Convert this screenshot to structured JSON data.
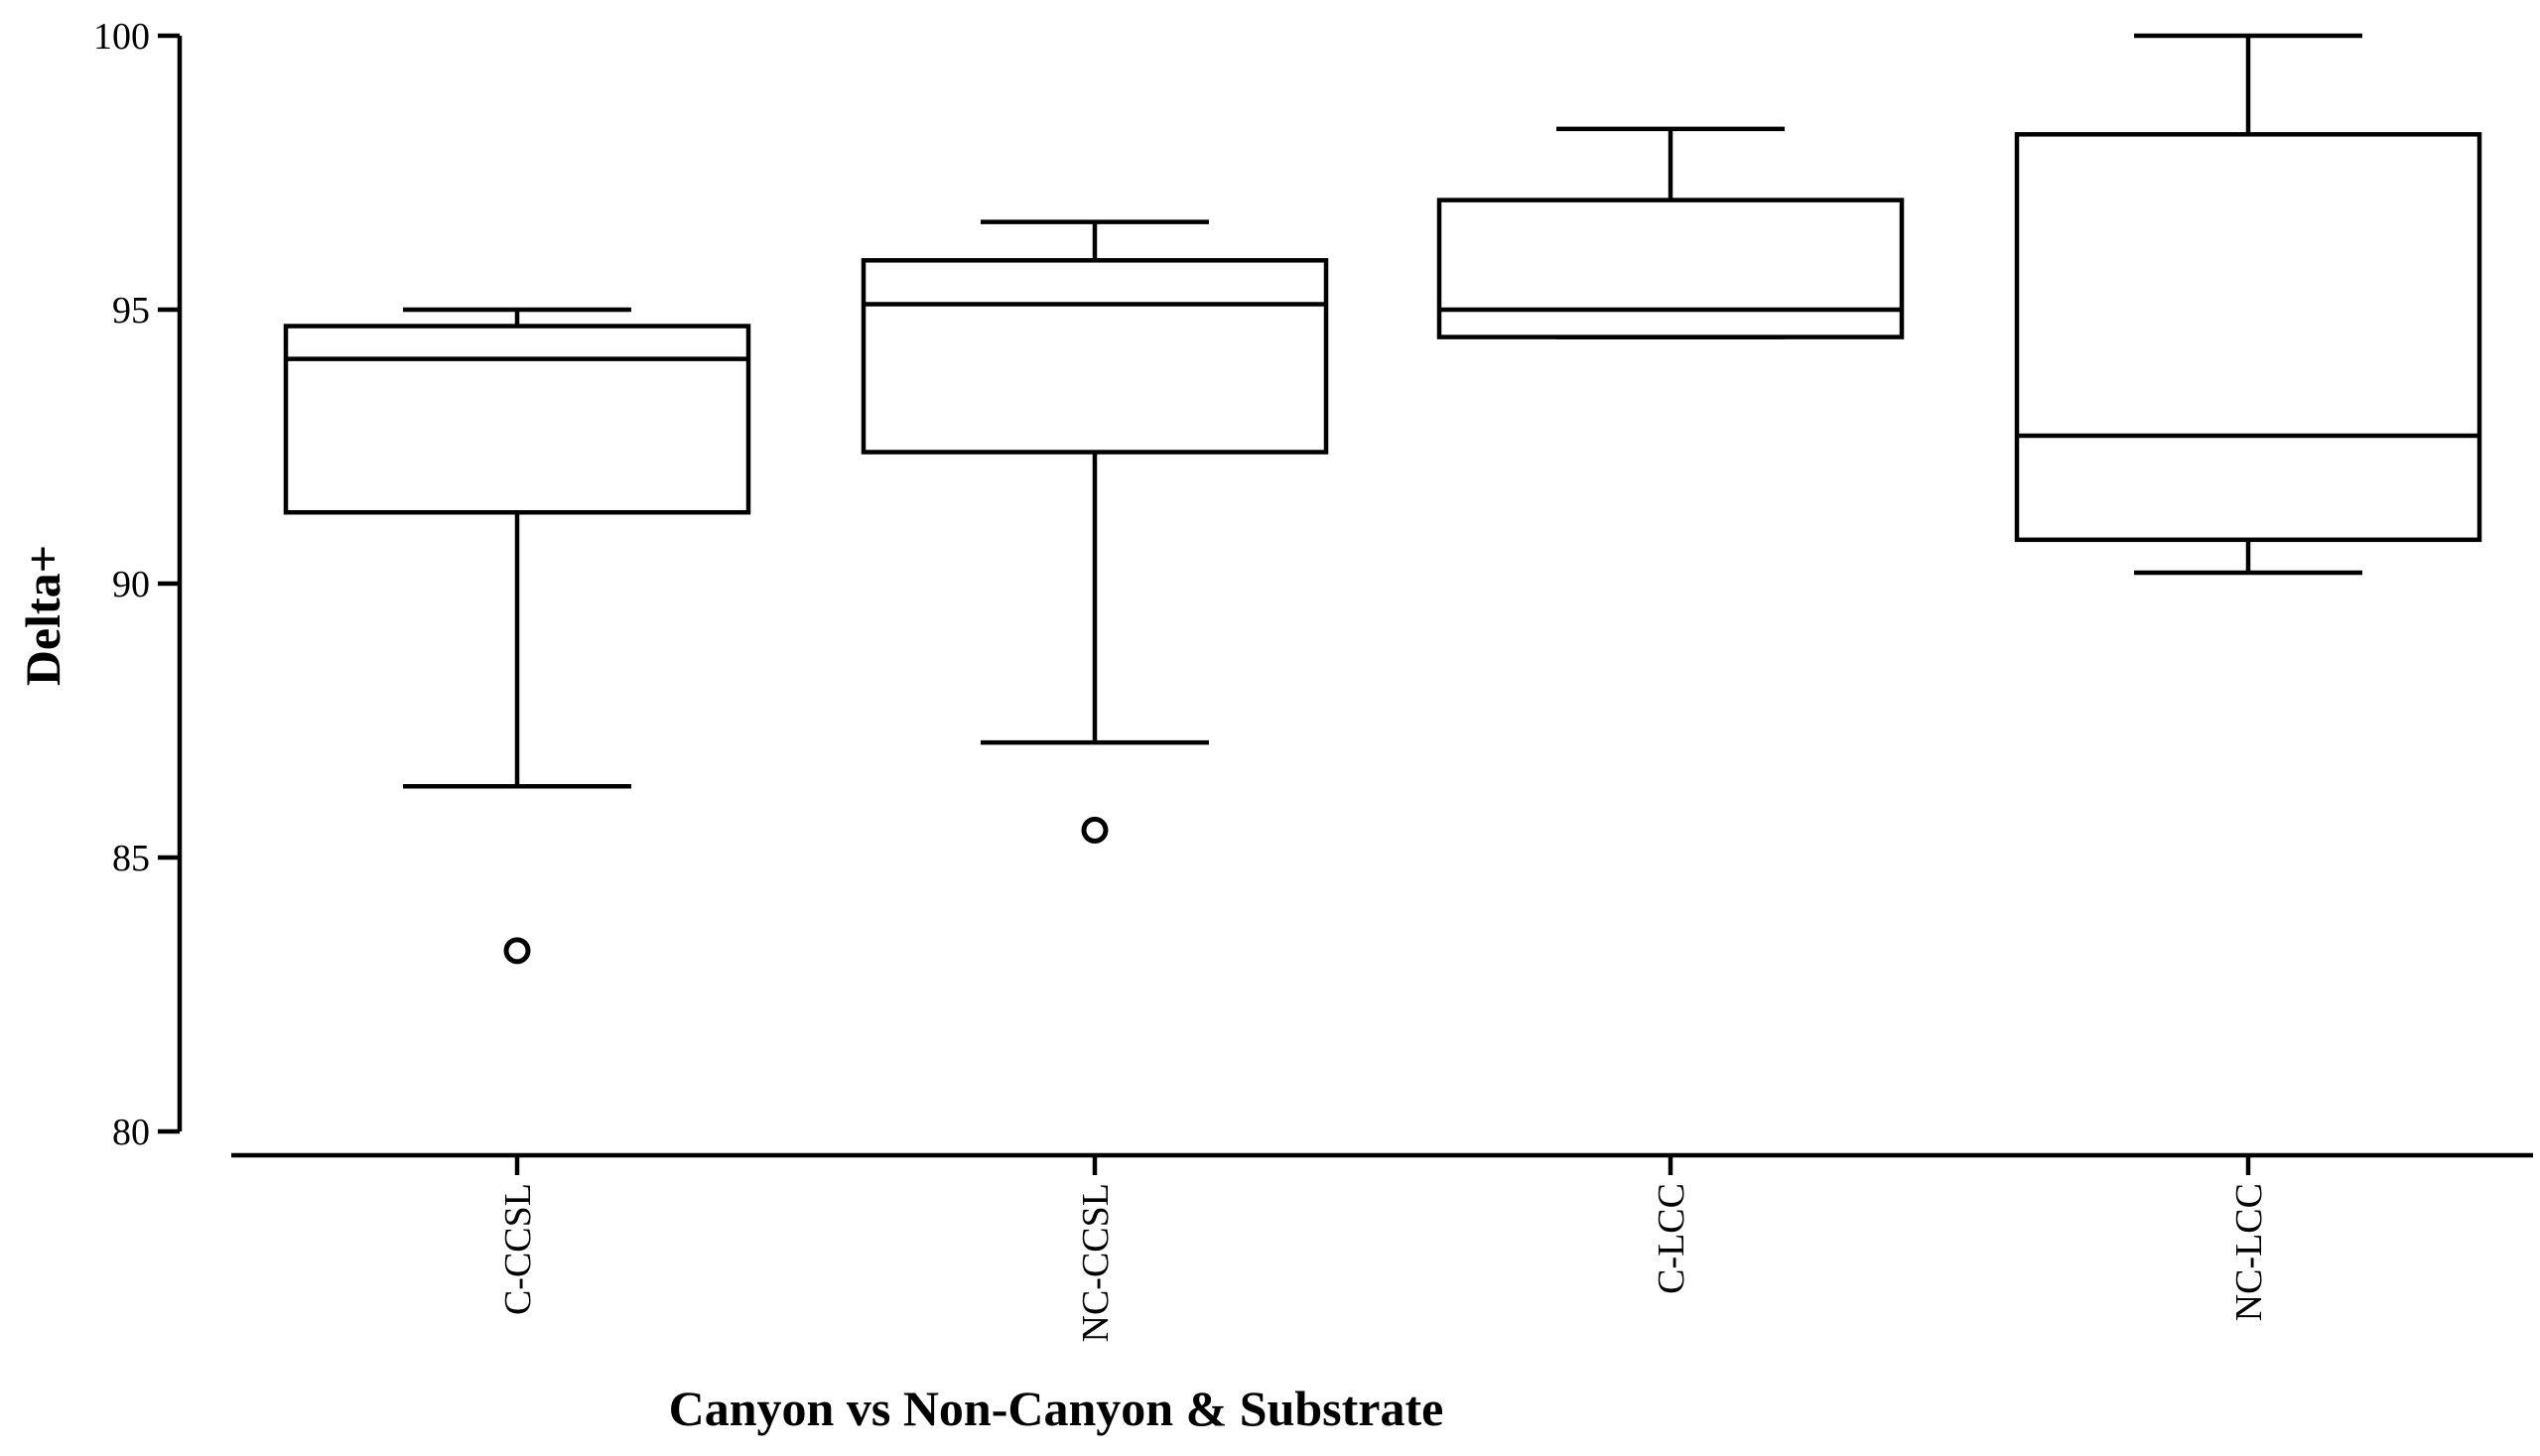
{
  "chart_data": {
    "type": "box",
    "title": "",
    "xlabel": "Canyon vs Non-Canyon & Substrate",
    "ylabel": "Delta+",
    "ylim": [
      80,
      100
    ],
    "yticks": [
      "80",
      "85",
      "90",
      "95",
      "100"
    ],
    "grid": false,
    "categories": [
      "C-CCSL",
      "NC-CCSL",
      "C-LCC",
      "NC-LCC"
    ],
    "boxes": [
      {
        "category": "C-CCSL",
        "whisker_low": 86.3,
        "q1": 91.3,
        "median": 94.1,
        "q3": 94.7,
        "whisker_high": 95.0,
        "outliers": [
          83.3
        ]
      },
      {
        "category": "NC-CCSL",
        "whisker_low": 87.1,
        "q1": 92.4,
        "median": 95.1,
        "q3": 95.9,
        "whisker_high": 96.6,
        "outliers": [
          85.5
        ]
      },
      {
        "category": "C-LCC",
        "whisker_low": 94.5,
        "q1": 94.5,
        "median": 95.0,
        "q3": 97.0,
        "whisker_high": 98.3,
        "outliers": []
      },
      {
        "category": "NC-LCC",
        "whisker_low": 90.2,
        "q1": 90.8,
        "median": 92.7,
        "q3": 98.2,
        "whisker_high": 100.0,
        "outliers": []
      }
    ]
  }
}
